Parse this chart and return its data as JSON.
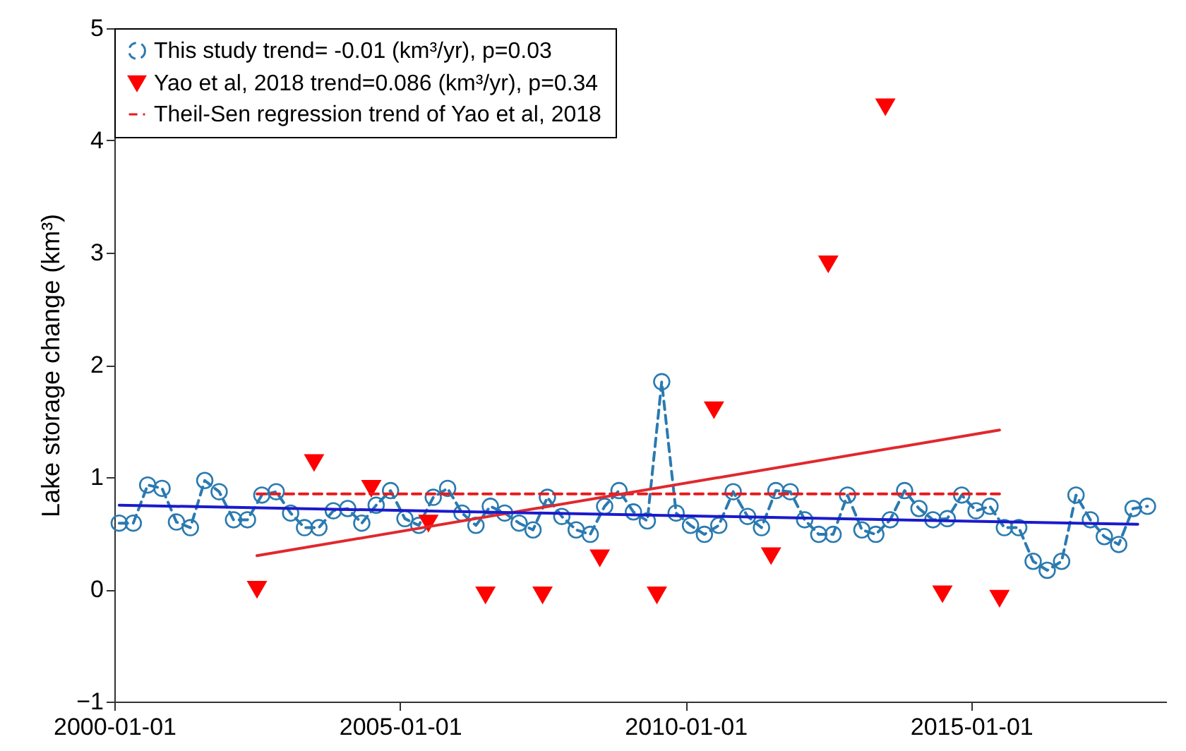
{
  "chart_data": {
    "type": "line",
    "ylabel": "Lake storage change  (km³)",
    "xlim": [
      "2000-01-01",
      "2018-06-01"
    ],
    "xticks": [
      "2000-01-01",
      "2005-01-01",
      "2010-01-01",
      "2015-01-01"
    ],
    "ylim": [
      -1,
      5
    ],
    "yticks": [
      -1,
      0,
      1,
      2,
      3,
      4,
      5
    ],
    "grid": false,
    "legend": "top left",
    "series": [
      {
        "name": "This study  trend= -0.01 (km³/yr), p=0.03",
        "marker": "circle",
        "line_style": "dashed",
        "color": "#2a7ab0",
        "x": [
          "2000-02",
          "2000-05",
          "2000-08",
          "2000-11",
          "2001-02",
          "2001-05",
          "2001-08",
          "2001-11",
          "2002-02",
          "2002-05",
          "2002-08",
          "2002-11",
          "2003-02",
          "2003-05",
          "2003-08",
          "2003-11",
          "2004-02",
          "2004-05",
          "2004-08",
          "2004-11",
          "2005-02",
          "2005-05",
          "2005-08",
          "2005-11",
          "2006-02",
          "2006-05",
          "2006-08",
          "2006-11",
          "2007-02",
          "2007-05",
          "2007-08",
          "2007-11",
          "2008-02",
          "2008-05",
          "2008-08",
          "2008-11",
          "2009-02",
          "2009-05",
          "2009-08",
          "2009-11",
          "2010-02",
          "2010-05",
          "2010-08",
          "2010-11",
          "2011-02",
          "2011-05",
          "2011-08",
          "2011-11",
          "2012-02",
          "2012-05",
          "2012-08",
          "2012-11",
          "2013-02",
          "2013-05",
          "2013-08",
          "2013-11",
          "2014-02",
          "2014-05",
          "2014-08",
          "2014-11",
          "2015-02",
          "2015-05",
          "2015-08",
          "2015-11",
          "2016-02",
          "2016-05",
          "2016-08",
          "2016-11",
          "2017-02",
          "2017-05",
          "2017-08",
          "2017-11",
          "2018-02"
        ],
        "values": [
          0.59,
          0.59,
          0.93,
          0.9,
          0.6,
          0.55,
          0.97,
          0.87,
          0.62,
          0.62,
          0.84,
          0.87,
          0.68,
          0.55,
          0.55,
          0.7,
          0.72,
          0.59,
          0.75,
          0.88,
          0.63,
          0.57,
          0.82,
          0.9,
          0.68,
          0.57,
          0.74,
          0.68,
          0.59,
          0.53,
          0.82,
          0.65,
          0.53,
          0.49,
          0.74,
          0.88,
          0.69,
          0.61,
          1.85,
          0.68,
          0.57,
          0.49,
          0.57,
          0.87,
          0.65,
          0.55,
          0.88,
          0.87,
          0.62,
          0.49,
          0.49,
          0.84,
          0.53,
          0.49,
          0.62,
          0.88,
          0.72,
          0.62,
          0.63,
          0.84,
          0.7,
          0.74,
          0.55,
          0.55,
          0.25,
          0.17,
          0.25,
          0.84,
          0.62,
          0.47,
          0.4,
          0.72,
          0.74
        ]
      },
      {
        "name": "Yao et al, 2018  trend=0.086 (km³/yr), p=0.34",
        "type": "scatter",
        "marker": "triangle",
        "color": "#ff0000",
        "x": [
          "2002-07",
          "2003-07",
          "2004-07",
          "2005-07",
          "2006-07",
          "2007-07",
          "2008-07",
          "2009-07",
          "2010-07",
          "2011-07",
          "2012-07",
          "2013-07",
          "2014-07",
          "2015-07"
        ],
        "values": [
          0.0,
          1.13,
          0.9,
          0.59,
          -0.05,
          -0.05,
          0.28,
          -0.05,
          1.6,
          0.3,
          2.9,
          4.3,
          -0.04,
          -0.08
        ]
      },
      {
        "name": "Theil-Sen regression trend of Yao et al, 2018",
        "line_style": "dashed",
        "color": "#e8191c",
        "x": [
          "2002-07",
          "2015-07"
        ],
        "values": [
          0.85,
          0.85
        ]
      },
      {
        "line_style": "solid",
        "color": "#e0282e",
        "x": [
          "2002-07",
          "2015-07"
        ],
        "values": [
          0.3,
          1.42
        ]
      },
      {
        "line_style": "solid",
        "color": "#1a1acc",
        "x": [
          "2000-02",
          "2017-12"
        ],
        "values": [
          0.75,
          0.58
        ]
      }
    ]
  }
}
